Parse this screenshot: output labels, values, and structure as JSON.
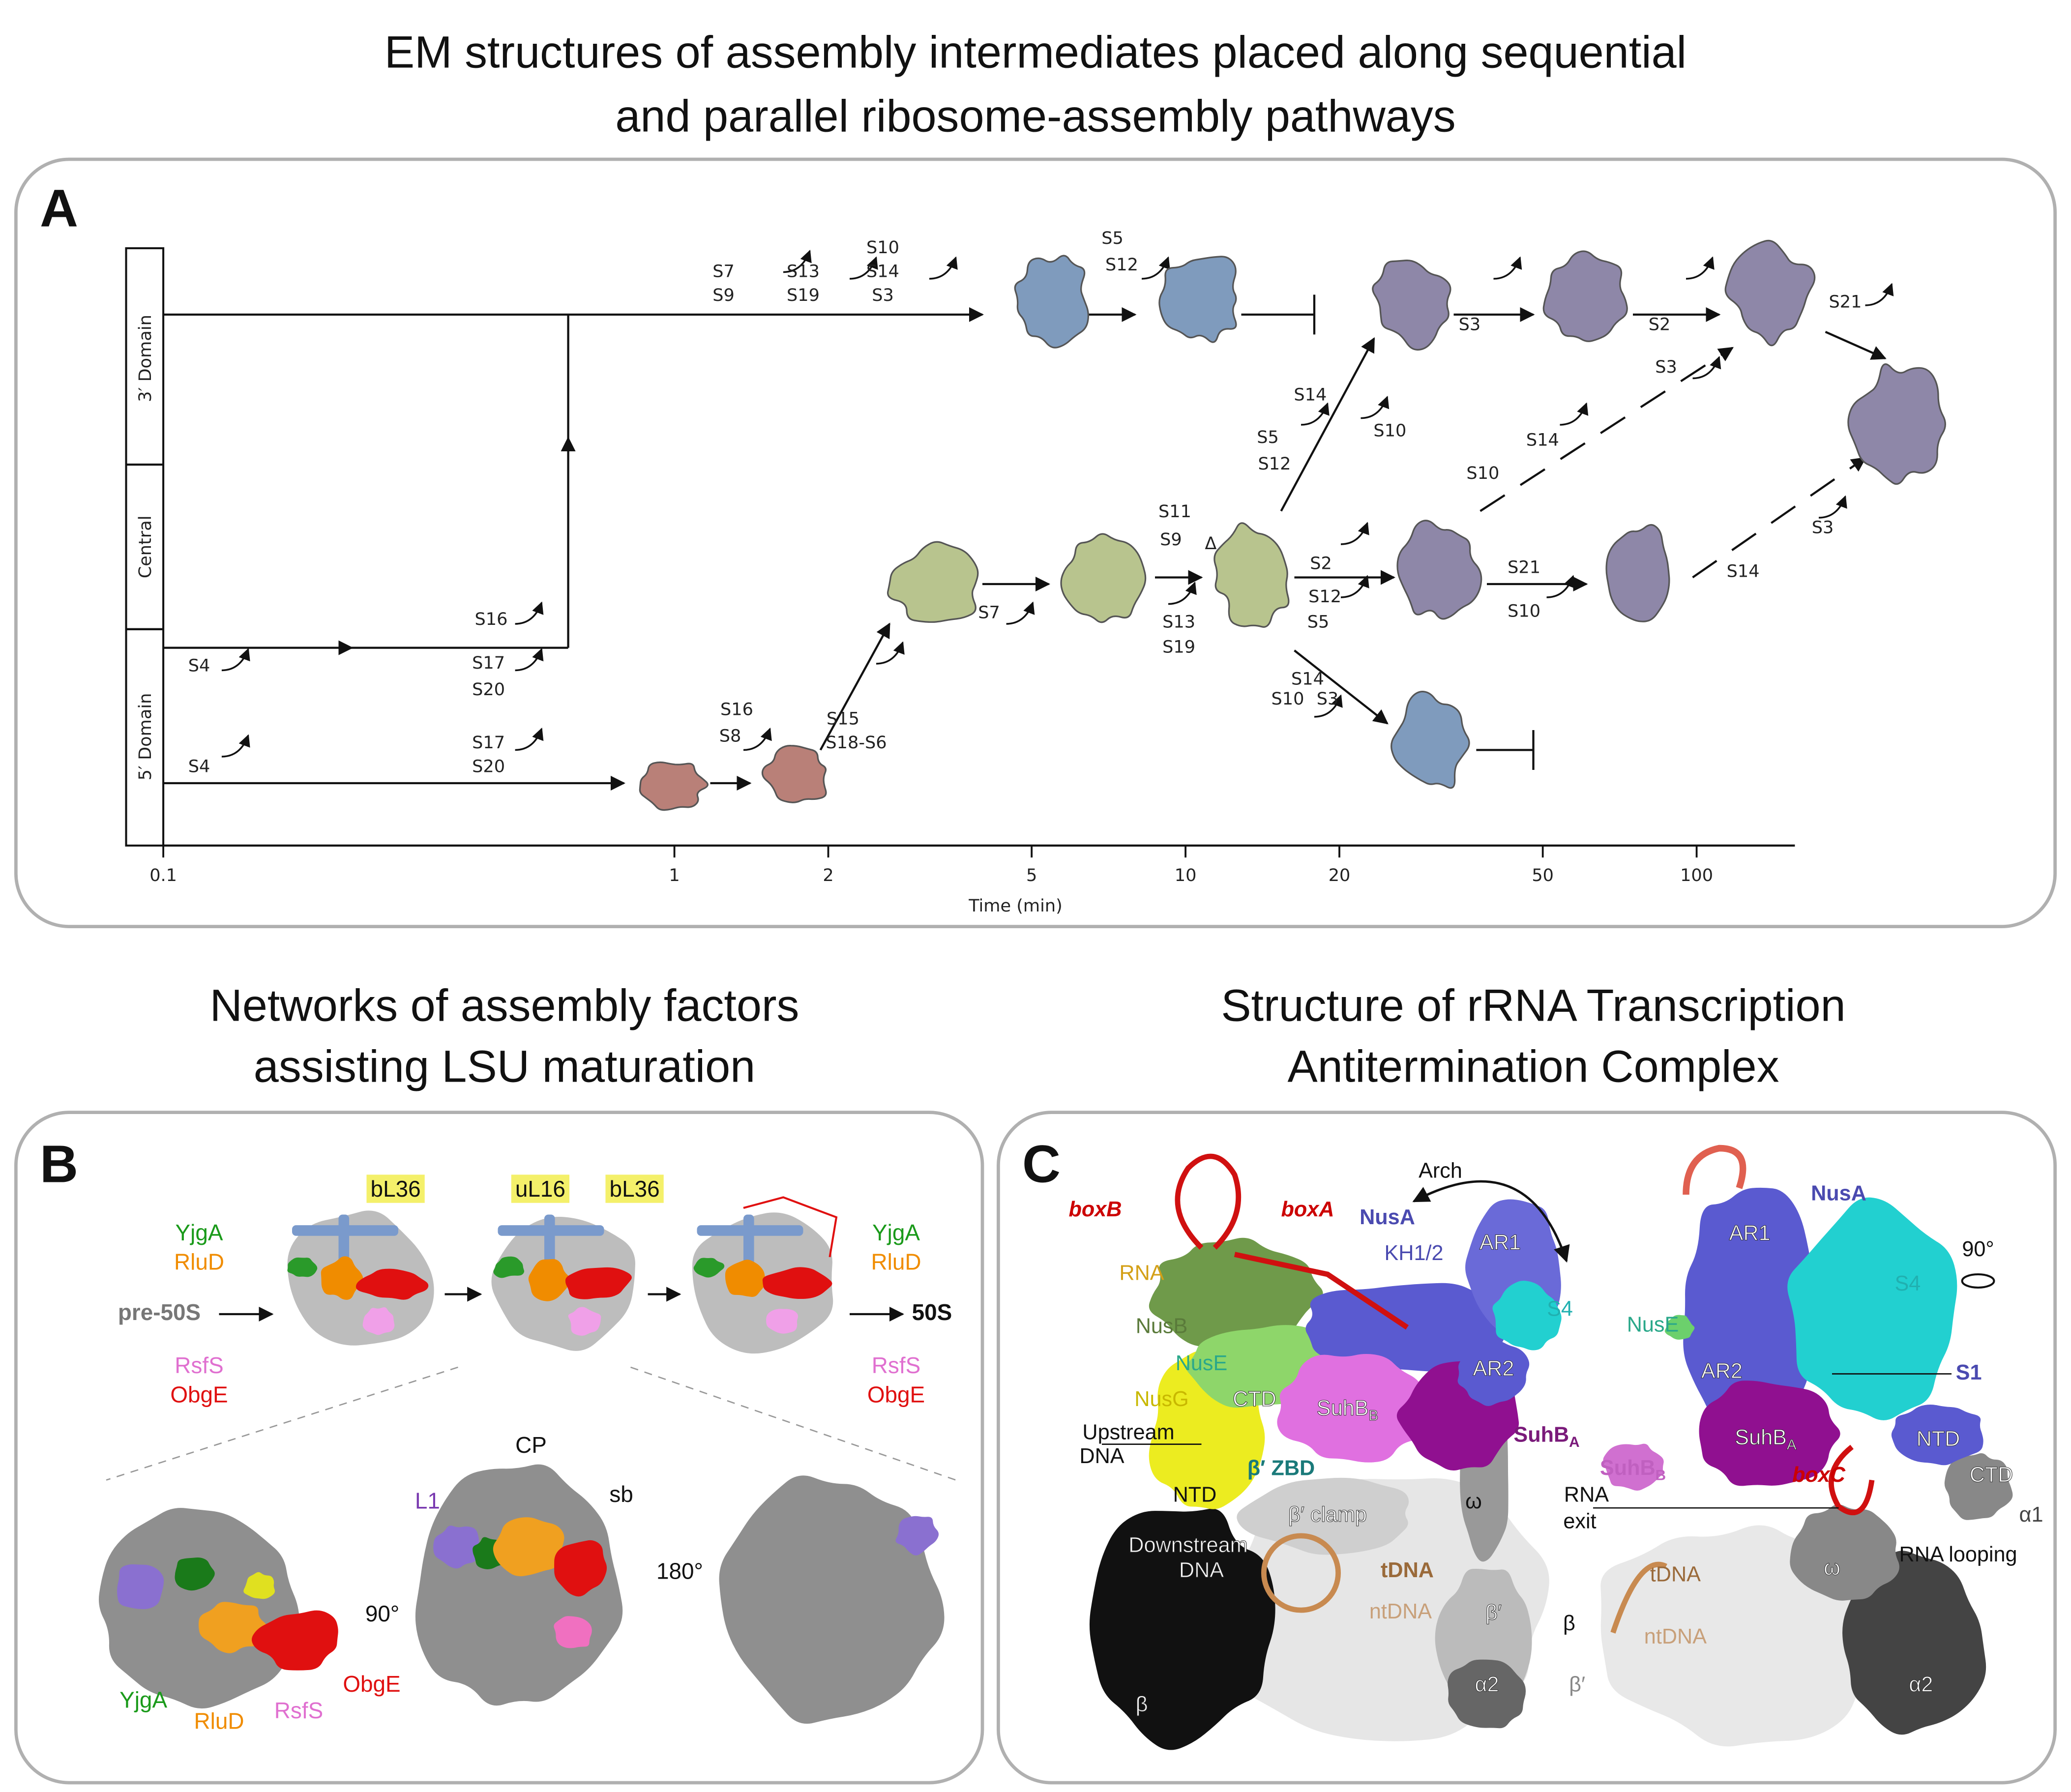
{
  "figure_title": [
    "EM structures of assembly intermediates placed along sequential",
    "and parallel ribosome-assembly pathways"
  ],
  "panel_a": {
    "label": "A",
    "domains": [
      "3′ Domain",
      "Central",
      "5′ Domain"
    ],
    "pathway_labels": [
      "S7",
      "S9",
      "S13",
      "S19",
      "S10",
      "S14",
      "S3",
      "S5",
      "S12",
      "S3",
      "S2",
      "S21",
      "S14",
      "S5",
      "S12",
      "S10",
      "S3",
      "S14",
      "S10",
      "S11",
      "S9",
      "Δ",
      "S13",
      "S19",
      "S2",
      "S12",
      "S5",
      "S21",
      "S10",
      "S14",
      "S3",
      "S14",
      "S10",
      "S3",
      "S16",
      "S8",
      "S15",
      "S18-S6",
      "S7",
      "S16",
      "S17",
      "S20",
      "S4",
      "S17",
      "S20",
      "S4"
    ],
    "x_axis": {
      "title": "Time (min)",
      "ticks": [
        0.1,
        1,
        2,
        5,
        10,
        20,
        50,
        100
      ]
    }
  },
  "panel_b": {
    "label": "B",
    "title": [
      "Networks of assembly factors",
      "assisting LSU maturation"
    ],
    "labels": [
      "bL36",
      "uL16",
      "bL36",
      "YjgA",
      "RluD",
      "pre-50S",
      "RsfS",
      "ObgE",
      "YjgA",
      "RluD",
      "50S",
      "RsfS",
      "ObgE",
      "YjgA",
      "RluD",
      "RsfS",
      "ObgE",
      "90°",
      "L1",
      "CP",
      "sb",
      "180°"
    ]
  },
  "panel_c": {
    "label": "C",
    "title": [
      "Structure of rRNA Transcription",
      "Antitermination Complex"
    ],
    "labels": [
      "boxB",
      "boxA",
      "NusA",
      "Arch",
      "KH1/2",
      "AR1",
      "RNA",
      "NusB",
      "S4",
      "AR2",
      "NusE",
      {
        "text": "SuhB",
        "sub": "B"
      },
      "NusG",
      "CTD",
      {
        "text": "SuhB",
        "sub": "A"
      },
      "Upstream",
      "DNA",
      "β′ ZBD",
      "NTD",
      "ω",
      "β′ clamp",
      "Downstream",
      "DNA",
      "tDNA",
      "ntDNA",
      "β′",
      "β",
      "α2",
      "NusA",
      "AR1",
      "90°",
      "S4",
      "NusE",
      "AR2",
      "S1",
      {
        "text": "SuhB",
        "sub": "A"
      },
      "NTD",
      {
        "text": "SuhB",
        "sub": "B"
      },
      "boxC",
      "CTD",
      "RNA",
      "exit",
      "α1",
      "RNA looping",
      "ω",
      "tDNA",
      "β",
      "ntDNA",
      "β′",
      "α2"
    ]
  }
}
